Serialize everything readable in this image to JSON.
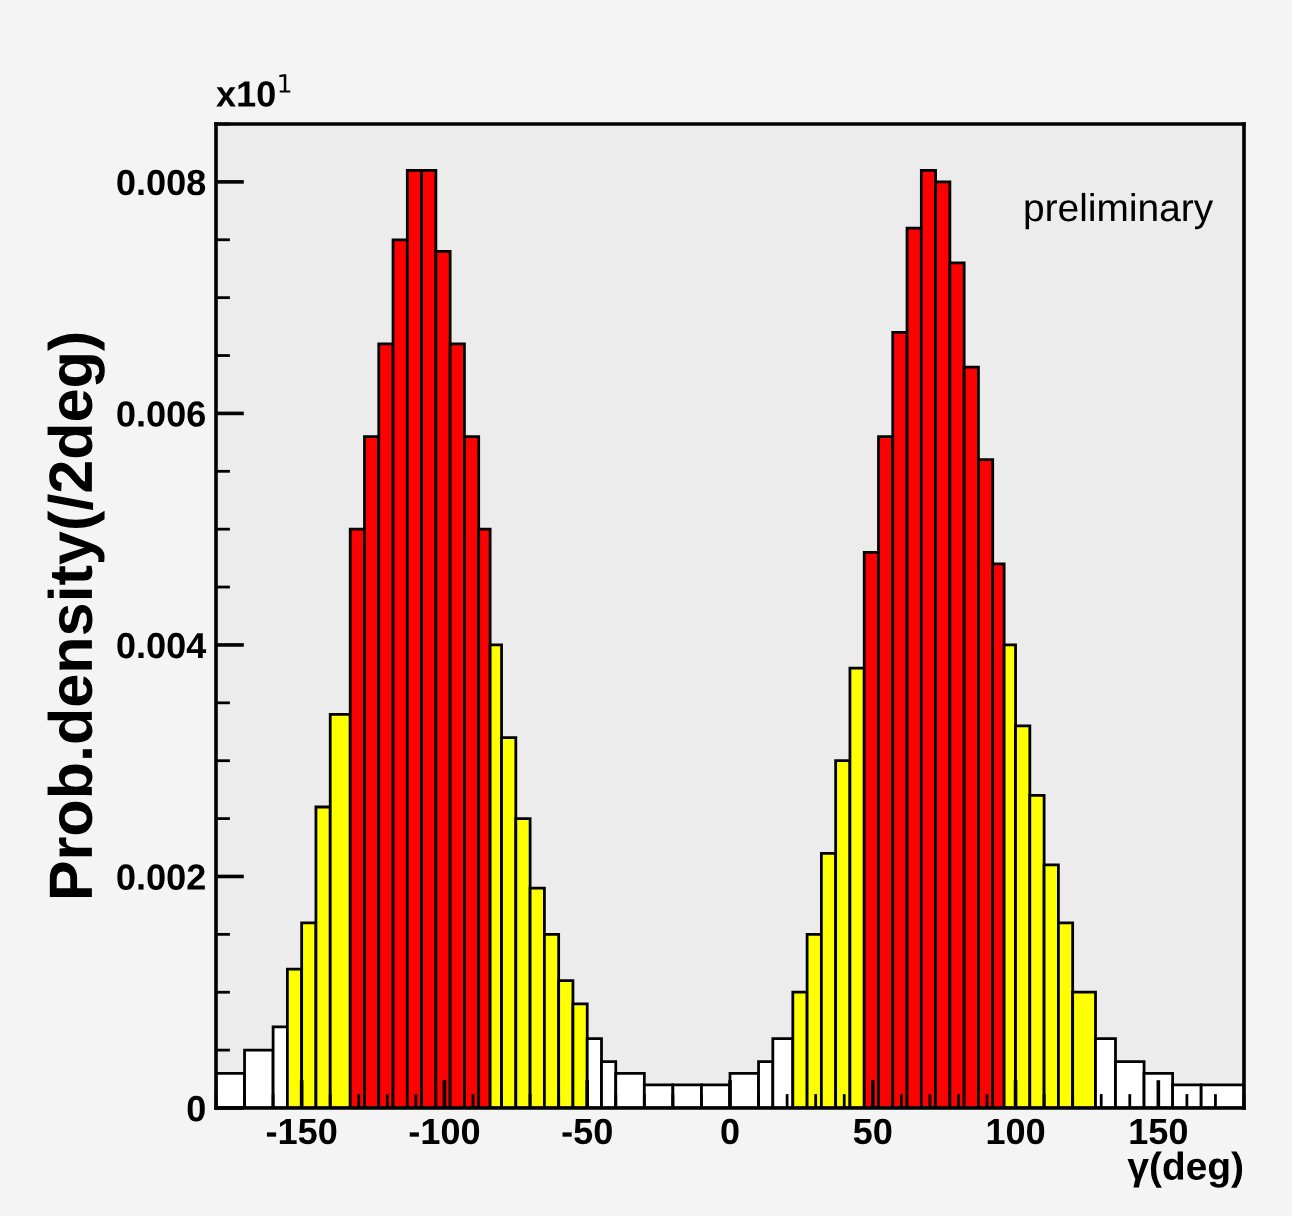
{
  "chart_data": {
    "type": "histogram",
    "xlabel": "γ(deg)",
    "ylabel": "Prob.density(/2deg)",
    "annotations": [
      "x10$^{1}$",
      "preliminary"
    ],
    "bins": [
      -180,
      -170,
      -160,
      -155,
      -150,
      -145,
      -140,
      -133,
      -128,
      -123,
      -118,
      -113,
      -108,
      -103,
      -98,
      -93,
      -88,
      -84,
      -80,
      -75,
      -70,
      -65,
      -60,
      -55,
      -50,
      -45,
      -40,
      -30,
      -20,
      -10,
      0,
      10,
      15,
      22,
      27,
      32,
      37,
      42,
      47,
      52,
      57,
      62,
      67,
      72,
      77,
      82,
      87,
      92,
      96,
      100,
      105,
      110,
      115,
      120,
      128,
      135,
      145,
      155,
      165,
      180
    ],
    "values": [
      0.0003,
      0.0005,
      0.0007,
      0.0012,
      0.0016,
      0.0026,
      0.0034,
      0.005,
      0.0058,
      0.0066,
      0.0075,
      0.0081,
      0.0081,
      0.0074,
      0.0066,
      0.0058,
      0.005,
      0.004,
      0.0032,
      0.0025,
      0.0019,
      0.0015,
      0.0011,
      0.0009,
      0.0006,
      0.0004,
      0.0003,
      0.0002,
      0.0002,
      0.0002,
      0.0003,
      0.0004,
      0.0006,
      0.001,
      0.0015,
      0.0022,
      0.003,
      0.0038,
      0.0048,
      0.0058,
      0.0067,
      0.0076,
      0.0081,
      0.008,
      0.0073,
      0.0064,
      0.0056,
      0.0047,
      0.004,
      0.0033,
      0.0027,
      0.0021,
      0.0016,
      0.001,
      0.0006,
      0.0004,
      0.0003,
      0.0002,
      0.0002
    ],
    "colors": [
      "#ffffff",
      "#ffffff",
      "#ffffff",
      "#ffff00",
      "#ffff00",
      "#ffff00",
      "#ffff00",
      "#ff0000",
      "#ff0000",
      "#ff0000",
      "#ff0000",
      "#ff0000",
      "#ff0000",
      "#ff0000",
      "#ff0000",
      "#ff0000",
      "#ff0000",
      "#ffff00",
      "#ffff00",
      "#ffff00",
      "#ffff00",
      "#ffff00",
      "#ffff00",
      "#ffff00",
      "#ffffff",
      "#ffffff",
      "#ffffff",
      "#ffffff",
      "#ffffff",
      "#ffffff",
      "#ffffff",
      "#ffffff",
      "#ffffff",
      "#ffff00",
      "#ffff00",
      "#ffff00",
      "#ffff00",
      "#ffff00",
      "#ff0000",
      "#ff0000",
      "#ff0000",
      "#ff0000",
      "#ff0000",
      "#ff0000",
      "#ff0000",
      "#ff0000",
      "#ff0000",
      "#ff0000",
      "#ffff00",
      "#ffff00",
      "#ffff00",
      "#ffff00",
      "#ffff00",
      "#ffff00",
      "#ffffff",
      "#ffffff",
      "#ffffff",
      "#ffffff",
      "#ffffff"
    ],
    "color": "#000000",
    "xlim": [
      -180,
      180
    ],
    "ylim": [
      0,
      0.0085
    ],
    "xticks": [
      -150,
      -100,
      -50,
      0,
      50,
      100,
      150
    ],
    "yticks": [
      0,
      0.002,
      0.004,
      0.006,
      0.008
    ],
    "grid": false,
    "legend": false
  }
}
